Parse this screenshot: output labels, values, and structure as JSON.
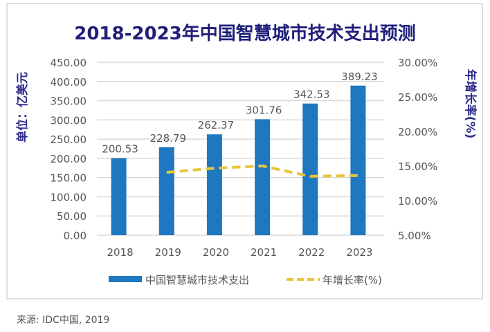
{
  "chart_data": {
    "type": "bar",
    "title": "2018-2023年中国智慧城市技术支出预测",
    "ylabel": "单位：亿美元",
    "y2label": "年增长率(%)",
    "categories": [
      "2018",
      "2019",
      "2020",
      "2021",
      "2022",
      "2023"
    ],
    "ylim": [
      0,
      450
    ],
    "y2lim": [
      5,
      30
    ],
    "yticks": [
      "0.00",
      "50.00",
      "100.00",
      "150.00",
      "200.00",
      "250.00",
      "300.00",
      "350.00",
      "400.00",
      "450.00"
    ],
    "y2ticks": [
      "5.00%",
      "10.00%",
      "15.00%",
      "20.00%",
      "25.00%",
      "30.00%"
    ],
    "grid": true,
    "legend_position": "bottom",
    "series": [
      {
        "name": "中国智慧城市技术支出",
        "type": "bar",
        "axis": "left",
        "color": "#1f77c0",
        "values": [
          200.53,
          228.79,
          262.37,
          301.76,
          342.53,
          389.23
        ],
        "labels": [
          "200.53",
          "228.79",
          "262.37",
          "301.76",
          "342.53",
          "389.23"
        ]
      },
      {
        "name": "年增长率(%)",
        "type": "line",
        "style": "dashed",
        "axis": "right",
        "color": "#e8c53a",
        "values": [
          null,
          14.09,
          14.68,
          15.01,
          13.51,
          13.63
        ]
      }
    ]
  },
  "source": "来源: IDC中国, 2019",
  "colors": {
    "title": "#1f1f7a",
    "axis_title": "#2a2a8a",
    "text": "#555555"
  }
}
